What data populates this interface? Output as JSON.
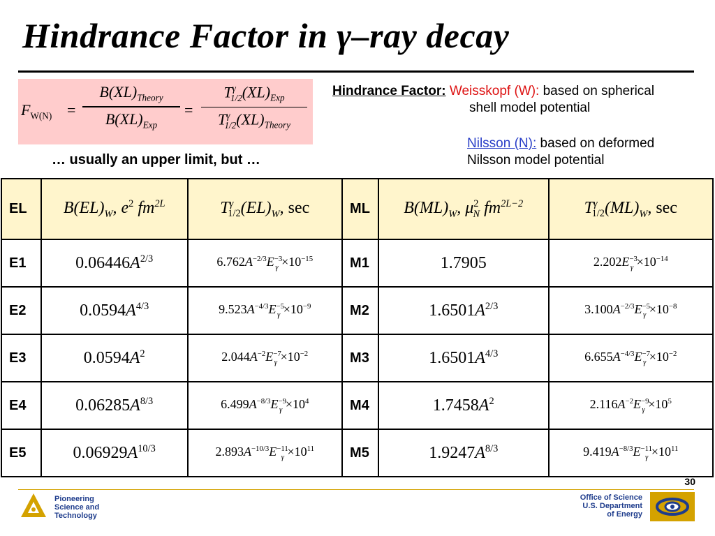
{
  "title": "Hindrance Factor in γ–ray decay",
  "formula": {
    "lhs": "F",
    "lhs_sub": "W(N)",
    "eq": "=",
    "frac1_num": "B(XL)",
    "frac1_num_sub": "Theory",
    "frac1_den": "B(XL)",
    "frac1_den_sub": "Exp",
    "frac2_num": "(XL)",
    "frac2_num_sub": "Exp",
    "frac2_den": "(XL)",
    "frac2_den_sub": "Theory",
    "t_symbol": "T",
    "t_sub": "1/2",
    "t_sup": "γ"
  },
  "note": "… usually an upper limit, but …",
  "hindrance": {
    "label": "Hindrance Factor:",
    "weisskopf": "Weisskopf (W):",
    "weisskopf_desc1": "based on spherical",
    "weisskopf_desc2": "shell model potential",
    "nilsson": "Nilsson (N):",
    "nilsson_desc1": "based on deformed",
    "nilsson_desc2": "Nilsson model potential"
  },
  "table": {
    "headers": {
      "el": "EL",
      "b_el": "B(EL)",
      "b_el_sub": "W",
      "b_el_units": ", e",
      "fm": "fm",
      "fm_sup": "2L",
      "t_el": "(EL)",
      "t_el_sub": "W",
      "sec": ", sec",
      "ml": "ML",
      "b_ml": "B(ML)",
      "b_ml_sub": "W",
      "mu": ", μ",
      "mu_sub": "N",
      "fm_ml_sup": "2L−2",
      "t_ml": "(ML)",
      "t_ml_sub": "W"
    },
    "rows": [
      {
        "el": "E1",
        "b_coef": "0.06446",
        "b_pow": "2/3",
        "t_coef": "6.762",
        "t_apow": "−2/3",
        "t_epow": "−3",
        "t_tpow": "−15",
        "ml": "M1",
        "bm_coef": "1.7905",
        "bm_pow": "",
        "tm_coef": "2.202",
        "tm_apow": "",
        "tm_epow": "−3",
        "tm_tpow": "−14"
      },
      {
        "el": "E2",
        "b_coef": "0.0594",
        "b_pow": "4/3",
        "t_coef": "9.523",
        "t_apow": "−4/3",
        "t_epow": "−5",
        "t_tpow": "−9",
        "ml": "M2",
        "bm_coef": "1.6501",
        "bm_pow": "2/3",
        "tm_coef": "3.100",
        "tm_apow": "−2/3",
        "tm_epow": "−5",
        "tm_tpow": "−8"
      },
      {
        "el": "E3",
        "b_coef": "0.0594",
        "b_pow": "2",
        "t_coef": "2.044",
        "t_apow": "−2",
        "t_epow": "−7",
        "t_tpow": "−2",
        "ml": "M3",
        "bm_coef": "1.6501",
        "bm_pow": "4/3",
        "tm_coef": "6.655",
        "tm_apow": "−4/3",
        "tm_epow": "−7",
        "tm_tpow": "−2"
      },
      {
        "el": "E4",
        "b_coef": "0.06285",
        "b_pow": "8/3",
        "t_coef": "6.499",
        "t_apow": "−8/3",
        "t_epow": "−9",
        "t_tpow": "4",
        "ml": "M4",
        "bm_coef": "1.7458",
        "bm_pow": "2",
        "tm_coef": "2.116",
        "tm_apow": "−2",
        "tm_epow": "−9",
        "tm_tpow": "5"
      },
      {
        "el": "E5",
        "b_coef": "0.06929",
        "b_pow": "10/3",
        "t_coef": "2.893",
        "t_apow": "−10/3",
        "t_epow": "−11",
        "t_tpow": "11",
        "ml": "M5",
        "bm_coef": "1.9247",
        "bm_pow": "8/3",
        "tm_coef": "9.419",
        "tm_apow": "−8/3",
        "tm_epow": "−11",
        "tm_tpow": "11"
      }
    ],
    "sym_a": "A",
    "sym_e": "E",
    "sym_gamma": "γ",
    "times10": "×10"
  },
  "footer": {
    "page": "30",
    "left1": "Pioneering",
    "left2": "Science and",
    "left3": "Technology",
    "right1": "Office of Science",
    "right2": "U.S. Department",
    "right3": "of Energy",
    "accent": "#d4a200",
    "logo_blue": "#1e3c8c"
  }
}
